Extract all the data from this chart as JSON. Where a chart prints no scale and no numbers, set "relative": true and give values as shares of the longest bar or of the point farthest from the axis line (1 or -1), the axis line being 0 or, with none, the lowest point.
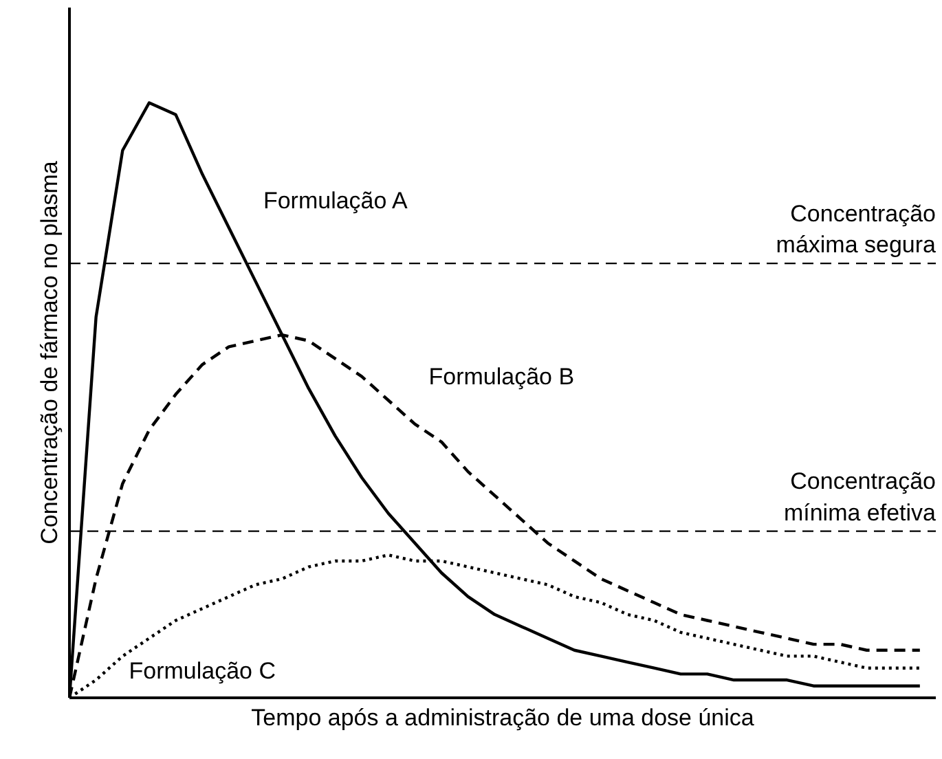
{
  "chart_data": {
    "type": "line",
    "relative": true,
    "xlabel": "Tempo após a administração de uma dose única",
    "ylabel": "Concentração de fármaco no plasma",
    "marker": "none",
    "categories": [
      null,
      null,
      null,
      null,
      null,
      null,
      null,
      null,
      null,
      null,
      null,
      null,
      null,
      null,
      null,
      null,
      null,
      null,
      null,
      null,
      null,
      null,
      null,
      null,
      null,
      null,
      null,
      null,
      null,
      null,
      null,
      null,
      null
    ],
    "series": [
      {
        "name": "Formulação A",
        "color": "#000000",
        "line_style": "solid",
        "values": [
          0,
          0.64,
          0.92,
          1.0,
          0.98,
          0.88,
          0.79,
          0.7,
          0.61,
          0.52,
          0.44,
          0.37,
          0.31,
          0.26,
          0.21,
          0.17,
          0.14,
          0.12,
          0.1,
          0.08,
          0.07,
          0.06,
          0.05,
          0.04,
          0.04,
          0.03,
          0.03,
          0.03,
          0.02,
          0.02,
          0.02,
          0.02,
          0.02
        ]
      },
      {
        "name": "Formulação B",
        "color": "#000000",
        "line_style": "dashed",
        "values": [
          0,
          0.2,
          0.36,
          0.45,
          0.51,
          0.56,
          0.59,
          0.6,
          0.61,
          0.6,
          0.57,
          0.54,
          0.5,
          0.46,
          0.43,
          0.38,
          0.34,
          0.3,
          0.26,
          0.23,
          0.2,
          0.18,
          0.16,
          0.14,
          0.13,
          0.12,
          0.11,
          0.1,
          0.09,
          0.09,
          0.08,
          0.08,
          0.08
        ]
      },
      {
        "name": "Formulação C",
        "color": "#000000",
        "line_style": "dotted",
        "values": [
          0,
          0.03,
          0.07,
          0.1,
          0.13,
          0.15,
          0.17,
          0.19,
          0.2,
          0.22,
          0.23,
          0.23,
          0.24,
          0.23,
          0.23,
          0.22,
          0.21,
          0.2,
          0.19,
          0.17,
          0.16,
          0.14,
          0.13,
          0.11,
          0.1,
          0.09,
          0.08,
          0.07,
          0.07,
          0.06,
          0.05,
          0.05,
          0.05
        ]
      }
    ],
    "ref_lines": [
      {
        "axis": "y",
        "value": 0.73,
        "label": "Concentração\nmáxima segura",
        "color": "#000000",
        "line_style": "dashed"
      },
      {
        "axis": "y",
        "value": 0.28,
        "label": "Concentração\nmínima efetiva",
        "color": "#000000",
        "line_style": "dashed"
      }
    ]
  }
}
